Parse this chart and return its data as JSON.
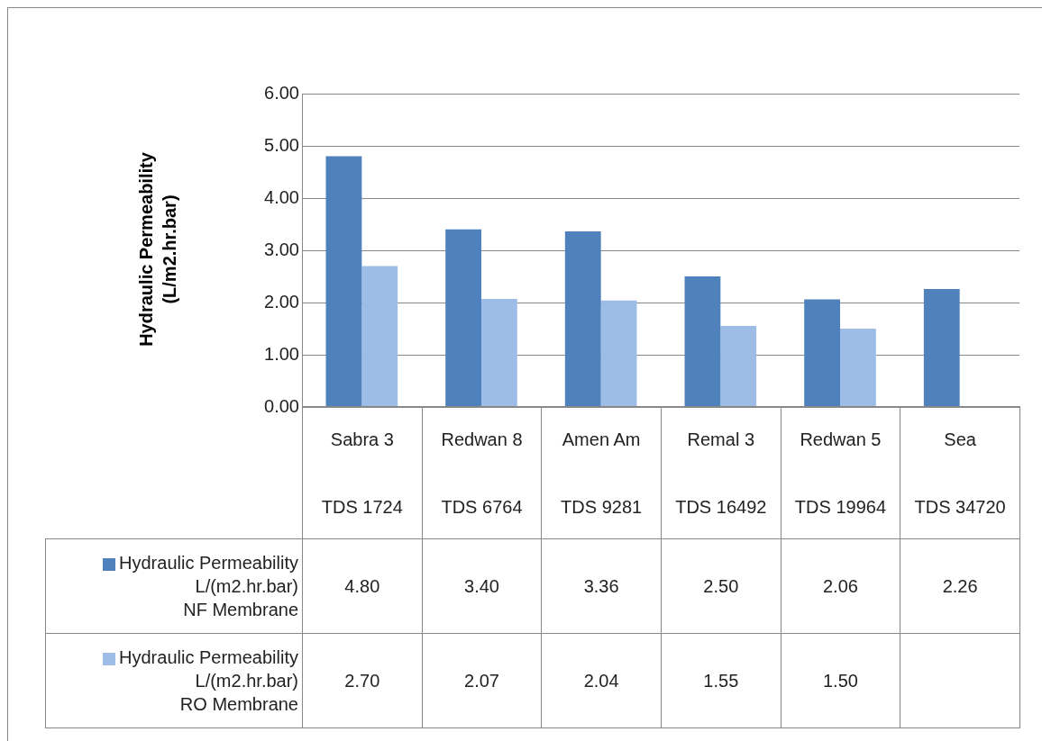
{
  "chart_data": {
    "type": "bar",
    "ylabel": "Hydraulic Permeability (L/m2.hr.bar)",
    "categories": [
      "Sabra 3\nTDS 1724",
      "Redwan 8\nTDS 6764",
      "Amen Am\nTDS 9281",
      "Remal 3\nTDS 16492",
      "Redwan 5\nTDS 19964",
      "Sea\nTDS 34720"
    ],
    "series": [
      {
        "name": "Hydraulic Permeability L/(m2.hr.bar) NF Membrane",
        "color": "#4f81bd",
        "values": [
          4.8,
          3.4,
          3.36,
          2.5,
          2.06,
          2.26
        ],
        "value_labels": [
          "4.80",
          "3.40",
          "3.36",
          "2.50",
          "2.06",
          "2.26"
        ]
      },
      {
        "name": "Hydraulic Permeability L/(m2.hr.bar) RO Membrane",
        "color": "#9dbde6",
        "values": [
          2.7,
          2.07,
          2.04,
          1.55,
          1.5,
          null
        ],
        "value_labels": [
          "2.70",
          "2.07",
          "2.04",
          "1.55",
          "1.50",
          null
        ]
      }
    ],
    "ylim": [
      0,
      6
    ],
    "yticks": [
      {
        "value": 0,
        "label": "0.00"
      },
      {
        "value": 1,
        "label": "1.00"
      },
      {
        "value": 2,
        "label": "2.00"
      },
      {
        "value": 3,
        "label": "3.00"
      },
      {
        "value": 4,
        "label": "4.00"
      },
      {
        "value": 5,
        "label": "5.00"
      },
      {
        "value": 6,
        "label": "6.00"
      }
    ],
    "grid": "y",
    "legend": "bottom"
  }
}
